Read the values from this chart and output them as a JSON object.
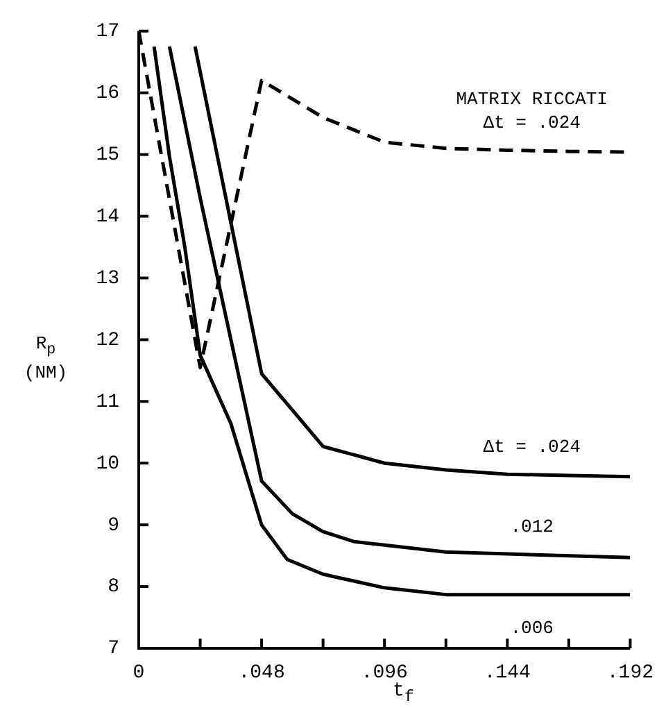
{
  "chart_data": {
    "type": "line",
    "xlabel": "t$_{f}$",
    "ylabel": "R$_{p}$ (NM)",
    "xlim": [
      0,
      0.192
    ],
    "ylim": [
      7,
      17
    ],
    "xticks": [
      {
        "value": 0,
        "label": "0"
      },
      {
        "value": 0.024,
        "label": null
      },
      {
        "value": 0.048,
        "label": ".048"
      },
      {
        "value": 0.072,
        "label": null
      },
      {
        "value": 0.096,
        "label": ".096"
      },
      {
        "value": 0.12,
        "label": null
      },
      {
        "value": 0.144,
        "label": ".144"
      },
      {
        "value": 0.168,
        "label": null
      },
      {
        "value": 0.192,
        "label": ".192"
      }
    ],
    "yticks": [
      7,
      8,
      9,
      10,
      11,
      12,
      13,
      14,
      15,
      16,
      17
    ],
    "grid": false,
    "legend": false,
    "marker": "none",
    "series": [
      {
        "name": "MATRIX RICCATI\nΔt = .024",
        "color": "#000000",
        "line_style": "dashed",
        "x": [
          0,
          0.024,
          0.048,
          0.072,
          0.096,
          0.12,
          0.144,
          0.168,
          0.192
        ],
        "values": [
          17,
          11.55,
          16.2,
          15.6,
          15.2,
          15.1,
          15.07,
          15.05,
          15.04
        ]
      },
      {
        "name": "Δt = .024",
        "color": "#000000",
        "line_style": "solid",
        "x": [
          0.022,
          0.048,
          0.072,
          0.096,
          0.12,
          0.144,
          0.168,
          0.192
        ],
        "values": [
          16.75,
          11.45,
          10.27,
          10.0,
          9.89,
          9.82,
          9.8,
          9.78
        ]
      },
      {
        "name": ".012",
        "color": "#000000",
        "line_style": "solid",
        "x": [
          0.012,
          0.024,
          0.036,
          0.048,
          0.06,
          0.072,
          0.084,
          0.12,
          0.192
        ],
        "values": [
          16.75,
          14.3,
          12.0,
          9.71,
          9.18,
          8.89,
          8.73,
          8.56,
          8.47
        ]
      },
      {
        "name": ".006",
        "color": "#000000",
        "line_style": "solid",
        "x": [
          0.006,
          0.012,
          0.018,
          0.024,
          0.036,
          0.048,
          0.058,
          0.072,
          0.096,
          0.12,
          0.192
        ],
        "values": [
          16.75,
          14.97,
          13.5,
          11.75,
          10.64,
          9.0,
          8.44,
          8.2,
          7.98,
          7.87,
          7.87
        ]
      }
    ]
  }
}
